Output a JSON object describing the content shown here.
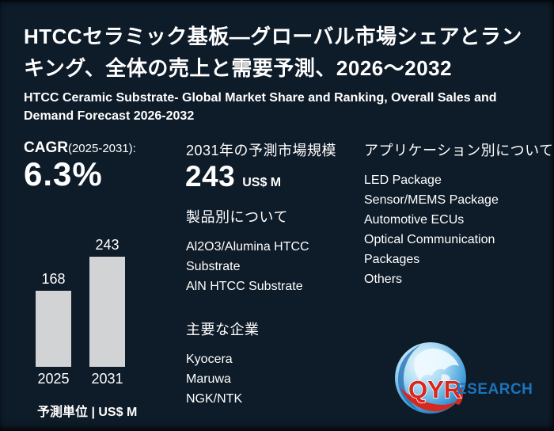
{
  "header": {
    "title_jp": "HTCCセラミック基板—グローバル市場シェアとランキング、全体の売上と需要予測、2026～2032",
    "subtitle_en": "HTCC Ceramic Substrate- Global Market Share and Ranking, Overall Sales and Demand Forecast 2026-2032"
  },
  "cagr": {
    "label": "CAGR",
    "period": "(2025-2031):",
    "value": "6.3%"
  },
  "chart_data": {
    "type": "bar",
    "categories": [
      "2025",
      "2031"
    ],
    "values": [
      168,
      243
    ],
    "title": "",
    "xlabel": "",
    "ylabel": "",
    "ylim": [
      0,
      260
    ],
    "grid": false,
    "legend": false,
    "value_labels": true,
    "unit_note": "予測単位 | US$ M",
    "bar_color": "#d2d3d4"
  },
  "forecast_2031": {
    "heading": "2031年の予測市場規模",
    "value": "243",
    "unit": "US$ M"
  },
  "products": {
    "heading": "製品別について",
    "items": [
      "Al2O3/Alumina HTCC Substrate",
      "AlN HTCC Substrate"
    ]
  },
  "companies": {
    "heading": "主要な企業",
    "items": [
      "Kyocera",
      "Maruwa",
      "NGK/NTK"
    ]
  },
  "applications": {
    "heading": "アプリケーション別について",
    "items": [
      "LED Package",
      "Sensor/MEMS Package",
      "Automotive ECUs",
      "Optical Communication Packages",
      "Others"
    ]
  },
  "logo": {
    "brand_red": "QYR",
    "brand_blue": "ESEARCH"
  },
  "colors": {
    "background": "#0e1b28",
    "text": "#ffffff",
    "bar": "#d2d3d4",
    "logo_red": "#d6281e",
    "logo_blue": "#1b74ba"
  }
}
